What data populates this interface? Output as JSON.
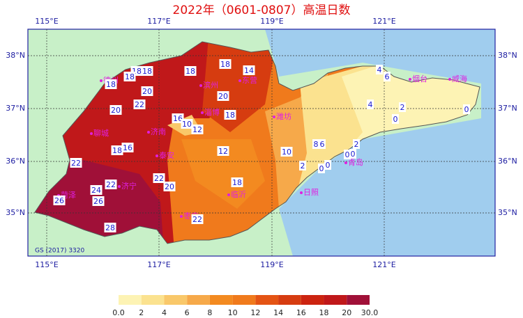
{
  "title": "2022年（0601-0807）高温日数",
  "lon_ticks": [
    "115°E",
    "117°E",
    "119°E",
    "121°E"
  ],
  "lat_ticks": [
    "38°N",
    "37°N",
    "36°N",
    "35°N"
  ],
  "note": "GS (2017) 3320",
  "cities": [
    "德州",
    "东营",
    "滨州",
    "淄博",
    "潍坊",
    "聊城",
    "济南",
    "泰安",
    "济宁",
    "菏泽",
    "临沂",
    "枣庄",
    "日照",
    "青岛",
    "烟台",
    "威海"
  ],
  "contour_labels": [
    "18",
    "18",
    "18",
    "18",
    "18",
    "18",
    "14",
    "20",
    "22",
    "20",
    "20",
    "16",
    "10",
    "12",
    "18",
    "16",
    "18",
    "22",
    "12",
    "22",
    "22",
    "20",
    "18",
    "24",
    "26",
    "26",
    "28",
    "22",
    "10",
    "8",
    "6",
    "2",
    "2",
    "0",
    "0",
    "0",
    "0",
    "4",
    "6",
    "4",
    "2",
    "0",
    "0"
  ],
  "legend": {
    "colors": [
      "#fdf3b4",
      "#fbe28f",
      "#f9c86a",
      "#f6a94a",
      "#f38a20",
      "#f07a1c",
      "#e45414",
      "#d63c10",
      "#cc2410",
      "#c0181a",
      "#a01038"
    ],
    "ticks": [
      "0.0",
      "2",
      "4",
      "6",
      "8",
      "10",
      "12",
      "14",
      "16",
      "18",
      "20",
      "30.0"
    ]
  }
}
